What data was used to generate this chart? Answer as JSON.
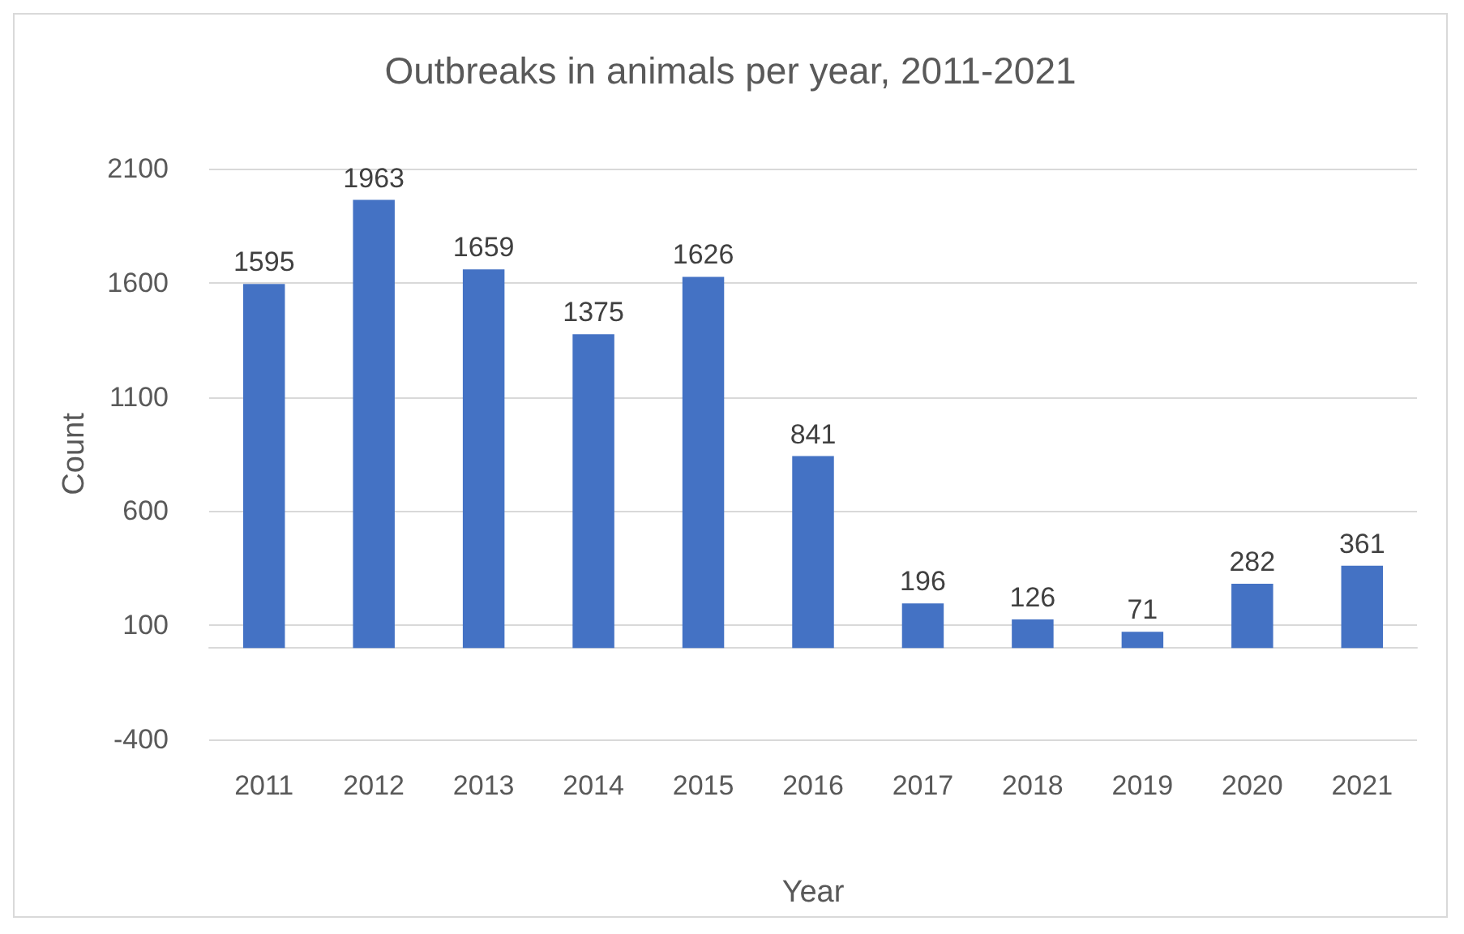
{
  "chart_data": {
    "type": "bar",
    "title": "Outbreaks in animals per year, 2011-2021",
    "xlabel": "Year",
    "ylabel": "Count",
    "categories": [
      "2011",
      "2012",
      "2013",
      "2014",
      "2015",
      "2016",
      "2017",
      "2018",
      "2019",
      "2020",
      "2021"
    ],
    "values": [
      1595,
      1963,
      1659,
      1375,
      1626,
      841,
      196,
      126,
      71,
      282,
      361
    ],
    "color": "#4472c4",
    "ylim": [
      -400,
      2100
    ],
    "yticks": [
      -400,
      100,
      600,
      1100,
      1600,
      2100
    ],
    "grid": "y",
    "data_labels": true
  }
}
